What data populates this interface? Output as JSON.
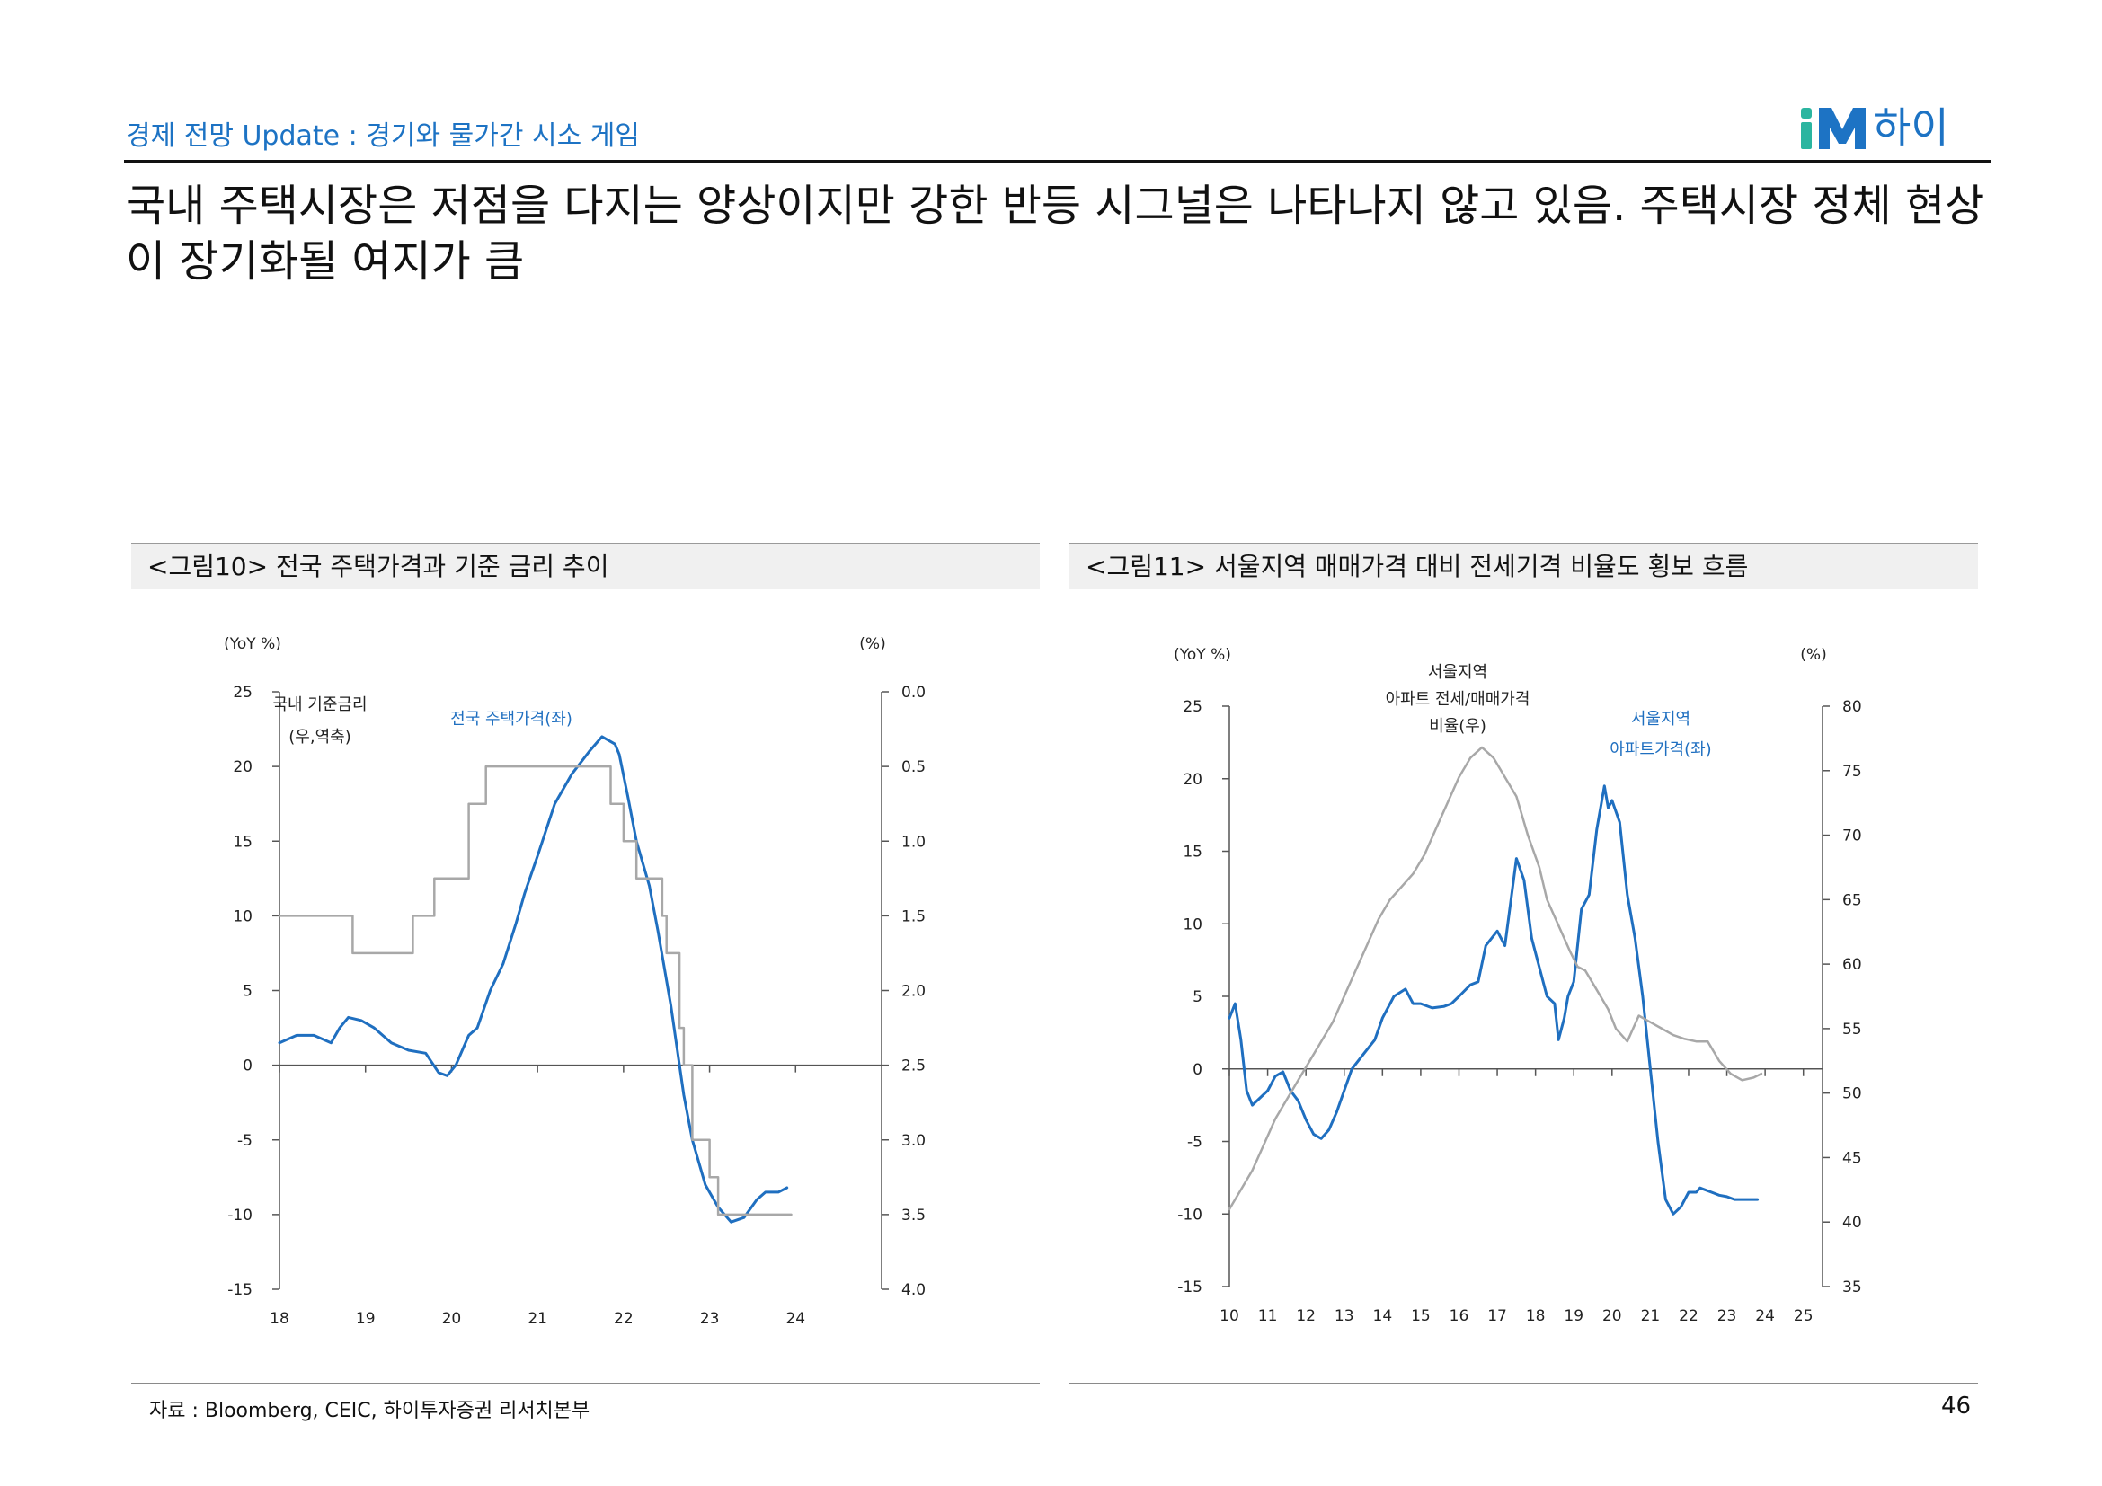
{
  "header": {
    "subtitle": "경제 전망 Update : 경기와 물가간 시소 게임",
    "logo_text": "iM하이",
    "logo_colors": {
      "i": "#2bb5a0",
      "M": "#1d73c4",
      "text": "#1d73c4"
    }
  },
  "headline": "국내 주택시장은 저점을 다지는 양상이지만 강한 반등 시그널은 나타나지 않고 있음. 주택시장 정체 현상이 장기화될 여지가 큼",
  "figures": [
    {
      "title": "<그림10> 전국 주택가격과 기준 금리 추이"
    },
    {
      "title": "<그림11> 서울지역 매매가격 대비 전세기격 비율도 횡보 흐름"
    }
  ],
  "chart_data": [
    {
      "type": "line",
      "title": "<그림10> 전국 주택가격과 기준 금리 추이",
      "y_left_label": "(YoY %)",
      "y_right_label": "(%)",
      "y_left_ticks": [
        "25",
        "20",
        "15",
        "10",
        "5",
        "0",
        "-5",
        "-10",
        "-15"
      ],
      "y_right_ticks": [
        "0.0",
        "0.5",
        "1.0",
        "1.5",
        "2.0",
        "2.5",
        "3.0",
        "3.5",
        "4.0"
      ],
      "x_ticks": [
        "18",
        "19",
        "20",
        "21",
        "22",
        "23",
        "24"
      ],
      "ylim_left": [
        -15,
        25
      ],
      "ylim_right": [
        4.0,
        0.0
      ],
      "xlim": [
        18,
        25
      ],
      "annotations": [
        {
          "text": "국내 기준금리",
          "color": "#222222"
        },
        {
          "text": "(우,역축)",
          "color": "#222222"
        },
        {
          "text": "전국 주택가격(좌)",
          "color": "#1f6fc0"
        }
      ],
      "series": [
        {
          "name": "전국 주택가격(좌)",
          "axis": "left",
          "color": "#1f6fc0",
          "step": false,
          "x": [
            18.0,
            18.2,
            18.4,
            18.6,
            18.7,
            18.8,
            18.95,
            19.1,
            19.3,
            19.5,
            19.7,
            19.85,
            19.95,
            20.05,
            20.2,
            20.3,
            20.45,
            20.6,
            20.75,
            20.85,
            21.0,
            21.2,
            21.4,
            21.6,
            21.75,
            21.9,
            21.95,
            22.05,
            22.15,
            22.3,
            22.4,
            22.55,
            22.7,
            22.8,
            22.95,
            23.1,
            23.25,
            23.4,
            23.55,
            23.65,
            23.8,
            23.9
          ],
          "y": [
            1.5,
            2.0,
            2.0,
            1.5,
            2.5,
            3.2,
            3.0,
            2.5,
            1.5,
            1.0,
            0.8,
            -0.5,
            -0.7,
            0.0,
            2.0,
            2.5,
            5.0,
            6.8,
            9.5,
            11.5,
            14.0,
            17.5,
            19.5,
            21.0,
            22.0,
            21.5,
            20.8,
            18.0,
            15.0,
            12.0,
            9.0,
            4.0,
            -2.0,
            -5.0,
            -8.0,
            -9.5,
            -10.5,
            -10.2,
            -9.0,
            -8.5,
            -8.5,
            -8.2
          ]
        },
        {
          "name": "국내 기준금리(우,역축)",
          "axis": "right",
          "color": "#a8a8a8",
          "step": true,
          "x": [
            18.0,
            18.85,
            19.55,
            19.8,
            20.2,
            20.4,
            21.6,
            21.85,
            22.0,
            22.15,
            22.3,
            22.45,
            22.5,
            22.55,
            22.65,
            22.7,
            22.75,
            22.8,
            23.0,
            23.1,
            23.3,
            23.95
          ],
          "y": [
            1.5,
            1.75,
            1.5,
            1.25,
            0.75,
            0.5,
            0.5,
            0.75,
            1.0,
            1.25,
            1.25,
            1.5,
            1.75,
            1.75,
            2.25,
            2.5,
            2.5,
            3.0,
            3.25,
            3.5,
            3.5,
            3.5
          ]
        }
      ]
    },
    {
      "type": "line",
      "title": "<그림11> 서울지역 매매가격 대비 전세기격 비율도 횡보 흐름",
      "y_left_label": "(YoY %)",
      "y_right_label": "(%)",
      "y_left_ticks": [
        "25",
        "20",
        "15",
        "10",
        "5",
        "0",
        "-5",
        "-10",
        "-15"
      ],
      "y_right_ticks": [
        "80",
        "75",
        "70",
        "65",
        "60",
        "55",
        "50",
        "45",
        "40",
        "35"
      ],
      "x_ticks": [
        "10",
        "11",
        "12",
        "13",
        "14",
        "15",
        "16",
        "17",
        "18",
        "19",
        "20",
        "21",
        "22",
        "23",
        "24",
        "25"
      ],
      "ylim_left": [
        -15,
        25
      ],
      "ylim_right": [
        35,
        80
      ],
      "xlim": [
        10,
        25.5
      ],
      "annotations": [
        {
          "text": "서울지역",
          "color": "#222222"
        },
        {
          "text": "아파트 전세/매매가격",
          "color": "#222222"
        },
        {
          "text": "비율(우)",
          "color": "#222222"
        },
        {
          "text": "서울지역",
          "color": "#1f6fc0"
        },
        {
          "text": "아파트가격(좌)",
          "color": "#1f6fc0"
        }
      ],
      "series": [
        {
          "name": "서울지역 아파트가격(좌)",
          "axis": "left",
          "color": "#1f6fc0",
          "x": [
            10.0,
            10.15,
            10.3,
            10.45,
            10.6,
            10.8,
            11.0,
            11.2,
            11.4,
            11.6,
            11.8,
            12.0,
            12.2,
            12.4,
            12.6,
            12.8,
            13.0,
            13.2,
            13.5,
            13.8,
            14.0,
            14.3,
            14.6,
            14.8,
            15.0,
            15.3,
            15.6,
            15.8,
            16.0,
            16.3,
            16.5,
            16.7,
            17.0,
            17.2,
            17.5,
            17.7,
            17.9,
            18.1,
            18.3,
            18.5,
            18.6,
            18.75,
            18.85,
            19.0,
            19.2,
            19.4,
            19.6,
            19.8,
            19.9,
            20.0,
            20.2,
            20.4,
            20.6,
            20.8,
            21.0,
            21.2,
            21.4,
            21.6,
            21.8,
            22.0,
            22.2,
            22.3,
            22.4,
            22.6,
            22.8,
            23.0,
            23.2,
            23.4,
            23.6,
            23.8
          ],
          "y": [
            3.5,
            4.5,
            2.0,
            -1.5,
            -2.5,
            -2.0,
            -1.5,
            -0.5,
            -0.2,
            -1.5,
            -2.2,
            -3.5,
            -4.5,
            -4.8,
            -4.2,
            -3.0,
            -1.5,
            0.0,
            1.0,
            2.0,
            3.5,
            5.0,
            5.5,
            4.5,
            4.5,
            4.2,
            4.3,
            4.5,
            5.0,
            5.8,
            6.0,
            8.5,
            9.5,
            8.5,
            14.5,
            13.0,
            9.0,
            7.0,
            5.0,
            4.5,
            2.0,
            3.5,
            5.0,
            6.0,
            11.0,
            12.0,
            16.5,
            19.5,
            18.0,
            18.5,
            17.0,
            12.0,
            9.0,
            5.0,
            0.0,
            -5.0,
            -9.0,
            -10.0,
            -9.5,
            -8.5,
            -8.5,
            -8.2,
            -8.3,
            -8.5,
            -8.7,
            -8.8,
            -9.0,
            -9.0,
            -9.0,
            -9.0
          ]
        },
        {
          "name": "서울지역 아파트 전세/매매가격 비율(우)",
          "axis": "right",
          "color": "#a8a8a8",
          "x": [
            10.0,
            10.3,
            10.6,
            10.9,
            11.2,
            11.5,
            11.8,
            12.1,
            12.4,
            12.7,
            13.0,
            13.3,
            13.6,
            13.9,
            14.2,
            14.5,
            14.8,
            15.1,
            15.4,
            15.7,
            16.0,
            16.3,
            16.6,
            16.9,
            17.2,
            17.5,
            17.8,
            18.1,
            18.3,
            18.6,
            18.9,
            19.1,
            19.3,
            19.6,
            19.9,
            20.1,
            20.4,
            20.7,
            21.0,
            21.3,
            21.6,
            21.9,
            22.2,
            22.5,
            22.8,
            23.1,
            23.4,
            23.7,
            23.9
          ],
          "y": [
            41.0,
            42.5,
            44.0,
            46.0,
            48.0,
            49.5,
            51.0,
            52.5,
            54.0,
            55.5,
            57.5,
            59.5,
            61.5,
            63.5,
            65.0,
            66.0,
            67.0,
            68.5,
            70.5,
            72.5,
            74.5,
            76.0,
            76.8,
            76.0,
            74.5,
            73.0,
            70.0,
            67.5,
            65.0,
            63.0,
            61.0,
            59.8,
            59.5,
            58.0,
            56.5,
            55.0,
            54.0,
            56.0,
            55.5,
            55.0,
            54.5,
            54.2,
            54.0,
            54.0,
            52.5,
            51.5,
            51.0,
            51.2,
            51.5
          ]
        }
      ]
    }
  ],
  "footer": {
    "source": "자료 : Bloomberg, CEIC, 하이투자증권 리서치본부",
    "page": "46"
  }
}
